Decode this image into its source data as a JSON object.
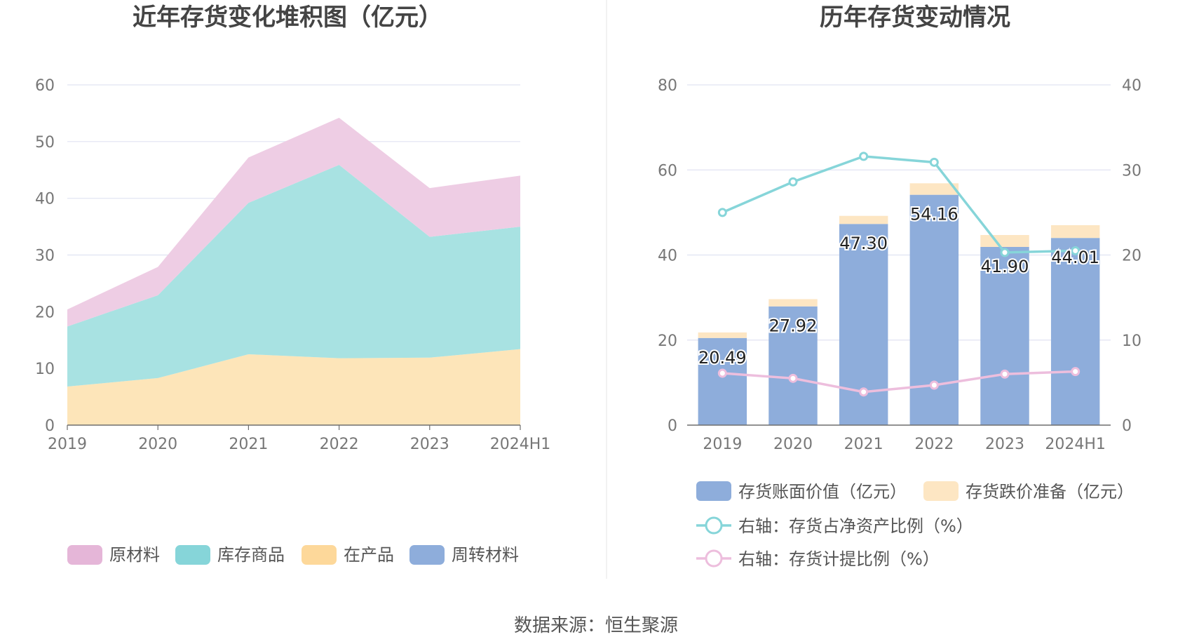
{
  "left_chart": {
    "title": "近年存货变化堆积图（亿元）",
    "legend": [
      "原材料",
      "库存商品",
      "在产品",
      "周转材料"
    ],
    "colors": {
      "原材料": "#EECDE4",
      "库存商品": "#A8E2E2",
      "在产品": "#FDE5B9",
      "周转材料": "#8EADDB"
    },
    "legend_colors": {
      "原材料": "#E5B6D8",
      "库存商品": "#86D5D9",
      "在产品": "#FDD89A",
      "周转材料": "#8EADDB"
    }
  },
  "right_chart": {
    "title": "历年存货变动情况",
    "legend": [
      {
        "label": "存货账面价值（亿元）",
        "type": "bar",
        "color": "#8EADDB"
      },
      {
        "label": "存货跌价准备（亿元）",
        "type": "bar",
        "color": "#FDE6C3"
      },
      {
        "label": "右轴：存货占净资产比例（%）",
        "type": "line",
        "color": "#86D5D9"
      },
      {
        "label": "右轴：存货计提比例（%）",
        "type": "line",
        "color": "#EDBEDD"
      }
    ]
  },
  "source": "数据来源：恒生聚源",
  "chart_data": [
    {
      "type": "area",
      "stacked": true,
      "title": "近年存货变化堆积图（亿元）",
      "categories": [
        "2019",
        "2020",
        "2021",
        "2022",
        "2023",
        "2024H1"
      ],
      "ylim": [
        0,
        60
      ],
      "yticks": [
        0,
        10,
        20,
        30,
        40,
        50,
        60
      ],
      "grid": true,
      "legend_position": "bottom",
      "series": [
        {
          "name": "在产品",
          "values": [
            6.8,
            8.3,
            12.5,
            11.8,
            11.9,
            13.4
          ]
        },
        {
          "name": "库存商品",
          "values": [
            10.6,
            14.6,
            26.7,
            34.1,
            21.3,
            21.6
          ]
        },
        {
          "name": "原材料",
          "values": [
            3.0,
            5.0,
            8.0,
            8.3,
            8.6,
            9.0
          ]
        },
        {
          "name": "周转材料",
          "values": [
            0,
            0,
            0,
            0,
            0,
            0
          ]
        }
      ]
    },
    {
      "type": "bar",
      "stacked": true,
      "title": "历年存货变动情况",
      "categories": [
        "2019",
        "2020",
        "2021",
        "2022",
        "2023",
        "2024H1"
      ],
      "ylim": [
        0,
        80
      ],
      "yticks": [
        0,
        20,
        40,
        60,
        80
      ],
      "y2lim": [
        0,
        40
      ],
      "y2ticks": [
        0,
        10,
        20,
        30,
        40
      ],
      "grid": true,
      "legend_position": "bottom",
      "series": [
        {
          "name": "存货账面价值（亿元）",
          "values": [
            20.49,
            27.92,
            47.3,
            54.16,
            41.9,
            44.01
          ],
          "labels": [
            "20.49",
            "27.92",
            "47.30",
            "54.16",
            "41.90",
            "44.01"
          ]
        },
        {
          "name": "存货跌价准备（亿元）",
          "values": [
            1.3,
            1.7,
            1.9,
            2.7,
            2.8,
            3.0
          ]
        },
        {
          "name": "右轴：存货占净资产比例（%）",
          "axis": "right",
          "type": "line",
          "values": [
            25.0,
            28.6,
            31.6,
            30.9,
            20.3,
            20.5
          ]
        },
        {
          "name": "右轴：存货计提比例（%）",
          "axis": "right",
          "type": "line",
          "values": [
            6.1,
            5.5,
            3.9,
            4.7,
            6.0,
            6.3
          ]
        }
      ]
    }
  ]
}
